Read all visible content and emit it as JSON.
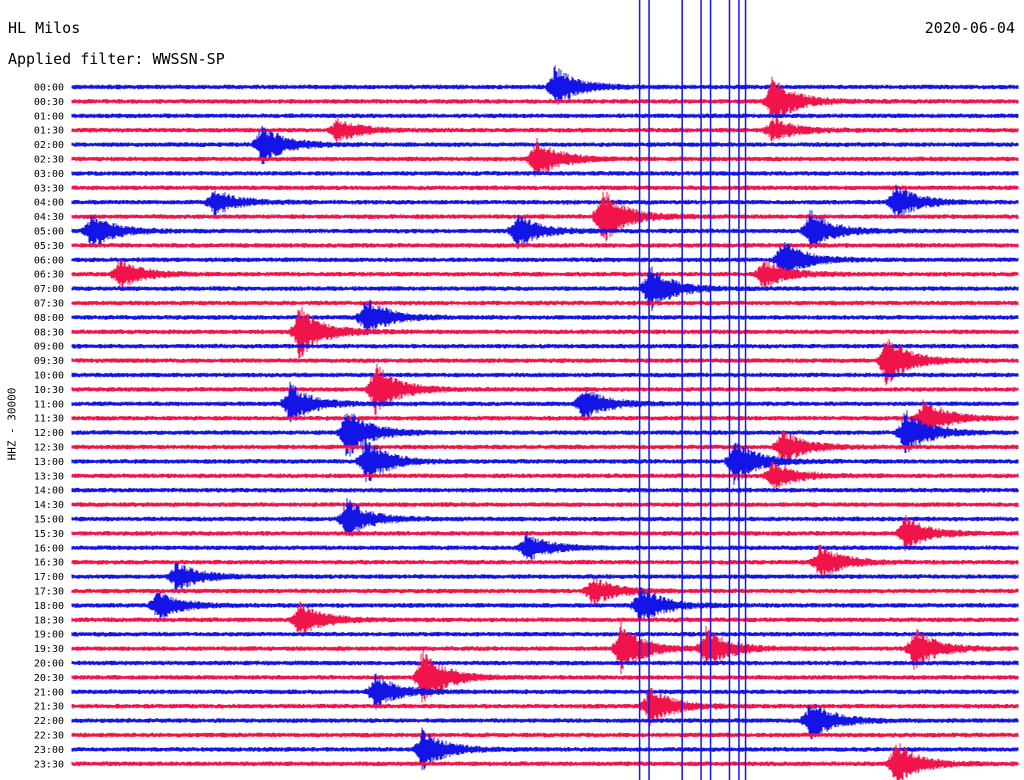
{
  "header": {
    "station": "HL Milos",
    "date": "2020-06-04",
    "filter": "Applied filter: WWSSN-SP",
    "channel": "HHZ - 30000"
  },
  "colors": {
    "blue": "#1414e6",
    "red": "#f0144a"
  },
  "chart_data": {
    "type": "line",
    "title": "HL Milos",
    "subtitle": "Applied filter: WWSSN-SP",
    "ylabel": "HHZ - 30000",
    "xlabel": "",
    "grid": false,
    "legend": "none",
    "ytick_labels": [
      "00:00",
      "00:30",
      "01:00",
      "01:30",
      "02:00",
      "02:30",
      "03:00",
      "03:30",
      "04:00",
      "04:30",
      "05:00",
      "05:30",
      "06:00",
      "06:30",
      "07:00",
      "07:30",
      "08:00",
      "08:30",
      "09:00",
      "09:30",
      "10:00",
      "10:30",
      "11:00",
      "11:30",
      "12:00",
      "12:30",
      "13:00",
      "13:30",
      "14:00",
      "14:30",
      "15:00",
      "15:30",
      "16:00",
      "16:30",
      "17:00",
      "17:30",
      "18:00",
      "18:30",
      "19:00",
      "19:30",
      "20:00",
      "20:30",
      "21:00",
      "21:30",
      "22:00",
      "22:30",
      "23:00",
      "23:30"
    ],
    "trace_colors": [
      "blue",
      "red"
    ],
    "events": [
      {
        "row": 0,
        "x": 0.51,
        "amp": 1.4
      },
      {
        "row": 1,
        "x": 0.74,
        "amp": 1.6
      },
      {
        "row": 3,
        "x": 0.28,
        "amp": 0.8
      },
      {
        "row": 3,
        "x": 0.74,
        "amp": 0.8
      },
      {
        "row": 4,
        "x": 0.2,
        "amp": 1.4
      },
      {
        "row": 5,
        "x": 0.49,
        "amp": 1.4
      },
      {
        "row": 8,
        "x": 0.15,
        "amp": 0.9
      },
      {
        "row": 8,
        "x": 0.87,
        "amp": 1.2
      },
      {
        "row": 9,
        "x": 0.56,
        "amp": 2.0
      },
      {
        "row": 10,
        "x": 0.02,
        "amp": 1.2
      },
      {
        "row": 10,
        "x": 0.47,
        "amp": 1.2
      },
      {
        "row": 10,
        "x": 0.78,
        "amp": 1.4
      },
      {
        "row": 12,
        "x": 0.75,
        "amp": 1.4
      },
      {
        "row": 13,
        "x": 0.05,
        "amp": 1.0
      },
      {
        "row": 13,
        "x": 0.73,
        "amp": 1.0
      },
      {
        "row": 14,
        "x": 0.61,
        "amp": 1.6
      },
      {
        "row": 16,
        "x": 0.31,
        "amp": 1.4
      },
      {
        "row": 17,
        "x": 0.24,
        "amp": 1.8
      },
      {
        "row": 19,
        "x": 0.86,
        "amp": 1.8
      },
      {
        "row": 21,
        "x": 0.32,
        "amp": 1.8
      },
      {
        "row": 22,
        "x": 0.23,
        "amp": 1.4
      },
      {
        "row": 22,
        "x": 0.54,
        "amp": 1.2
      },
      {
        "row": 23,
        "x": 0.9,
        "amp": 1.4
      },
      {
        "row": 24,
        "x": 0.29,
        "amp": 1.8
      },
      {
        "row": 24,
        "x": 0.88,
        "amp": 1.6
      },
      {
        "row": 25,
        "x": 0.75,
        "amp": 1.2
      },
      {
        "row": 26,
        "x": 0.31,
        "amp": 1.6
      },
      {
        "row": 26,
        "x": 0.7,
        "amp": 1.6
      },
      {
        "row": 27,
        "x": 0.74,
        "amp": 1.0
      },
      {
        "row": 30,
        "x": 0.29,
        "amp": 1.4
      },
      {
        "row": 31,
        "x": 0.88,
        "amp": 1.2
      },
      {
        "row": 32,
        "x": 0.48,
        "amp": 1.0
      },
      {
        "row": 33,
        "x": 0.79,
        "amp": 1.2
      },
      {
        "row": 34,
        "x": 0.11,
        "amp": 1.0
      },
      {
        "row": 35,
        "x": 0.55,
        "amp": 1.0
      },
      {
        "row": 36,
        "x": 0.09,
        "amp": 1.0
      },
      {
        "row": 36,
        "x": 0.6,
        "amp": 1.4
      },
      {
        "row": 37,
        "x": 0.24,
        "amp": 1.2
      },
      {
        "row": 39,
        "x": 0.58,
        "amp": 1.8
      },
      {
        "row": 39,
        "x": 0.67,
        "amp": 1.4
      },
      {
        "row": 39,
        "x": 0.89,
        "amp": 1.4
      },
      {
        "row": 41,
        "x": 0.37,
        "amp": 2.0
      },
      {
        "row": 42,
        "x": 0.32,
        "amp": 1.2
      },
      {
        "row": 43,
        "x": 0.61,
        "amp": 1.4
      },
      {
        "row": 44,
        "x": 0.78,
        "amp": 1.4
      },
      {
        "row": 46,
        "x": 0.37,
        "amp": 1.4
      },
      {
        "row": 47,
        "x": 0.87,
        "amp": 1.6
      }
    ],
    "spikes": [
      {
        "x": 0.6,
        "color": "blue"
      },
      {
        "x": 0.61,
        "color": "blue"
      },
      {
        "x": 0.645,
        "color": "blue"
      },
      {
        "x": 0.665,
        "color": "blue"
      },
      {
        "x": 0.675,
        "color": "blue"
      },
      {
        "x": 0.695,
        "color": "blue"
      },
      {
        "x": 0.705,
        "color": "blue"
      },
      {
        "x": 0.712,
        "color": "blue"
      }
    ]
  }
}
